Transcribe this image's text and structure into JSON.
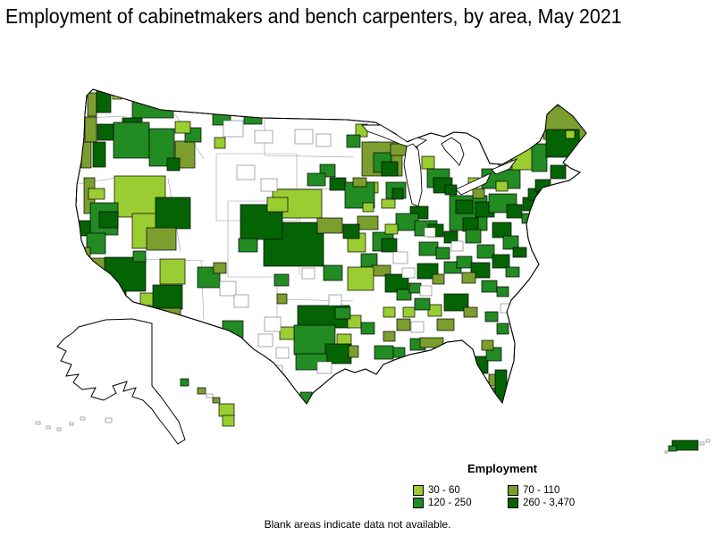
{
  "title": "Employment of cabinetmakers and bench carpenters, by area, May 2021",
  "footnote": "Blank areas indicate data not available.",
  "legend": {
    "title": "Employment",
    "classes": [
      {
        "label": "30 - 60",
        "color": "#9ACD32"
      },
      {
        "label": "70 - 110",
        "color": "#7B9E2E"
      },
      {
        "label": "120 - 250",
        "color": "#228B22"
      },
      {
        "label": "260 - 3,470",
        "color": "#046404"
      }
    ]
  },
  "chart_data": {
    "type": "choropleth",
    "title": "Employment of cabinetmakers and bench carpenters, by area, May 2021",
    "measure": "Employment",
    "period": "May 2021",
    "bins": [
      {
        "range": "30 - 60",
        "color": "#9ACD32"
      },
      {
        "range": "70 - 110",
        "color": "#7B9E2E"
      },
      {
        "range": "120 - 250",
        "color": "#228B22"
      },
      {
        "range": "260 - 3,470",
        "color": "#046404"
      }
    ],
    "note": "Blank areas indicate data not available.",
    "legend_position": "bottom-right"
  },
  "map": {
    "regions": [
      [
        98,
        104,
        10,
        26,
        1
      ],
      [
        108,
        100,
        16,
        26,
        3
      ],
      [
        126,
        100,
        10,
        11,
        0
      ],
      [
        148,
        106,
        46,
        26,
        2
      ],
      [
        137,
        132,
        22,
        20,
        3
      ],
      [
        95,
        131,
        13,
        28,
        1
      ],
      [
        109,
        139,
        18,
        18,
        3
      ],
      [
        127,
        137,
        40,
        40,
        2
      ],
      [
        104,
        159,
        14,
        28,
        3
      ],
      [
        91,
        159,
        11,
        29,
        1
      ],
      [
        167,
        144,
        28,
        42,
        2
      ],
      [
        196,
        158,
        22,
        30,
        1
      ],
      [
        187,
        177,
        14,
        14,
        3
      ],
      [
        207,
        143,
        18,
        16,
        2
      ],
      [
        196,
        136,
        17,
        13,
        0
      ],
      [
        238,
        127,
        20,
        13,
        2
      ],
      [
        240,
        154,
        12,
        12,
        0
      ],
      [
        273,
        126,
        20,
        13,
        2
      ],
      [
        398,
        139,
        13,
        14,
        0
      ],
      [
        388,
        151,
        15,
        14,
        2
      ],
      [
        412,
        159,
        13,
        12,
        3
      ],
      [
        358,
        184,
        17,
        14,
        2
      ],
      [
        405,
        159,
        45,
        38,
        1
      ],
      [
        418,
        171,
        20,
        22,
        2
      ],
      [
        427,
        181,
        18,
        16,
        3
      ],
      [
        409,
        204,
        14,
        12,
        0
      ],
      [
        432,
        204,
        22,
        18,
        2
      ],
      [
        439,
        211,
        12,
        12,
        3
      ],
      [
        427,
        223,
        15,
        10,
        0
      ],
      [
        437,
        161,
        30,
        13,
        1
      ],
      [
        472,
        175,
        14,
        14,
        0
      ],
      [
        478,
        189,
        25,
        21,
        2
      ],
      [
        485,
        199,
        21,
        17,
        3
      ],
      [
        498,
        207,
        13,
        11,
        3
      ],
      [
        305,
        212,
        55,
        32,
        0
      ],
      [
        344,
        194,
        20,
        14,
        2
      ],
      [
        369,
        199,
        18,
        14,
        3
      ],
      [
        386,
        204,
        33,
        29,
        2
      ],
      [
        395,
        199,
        15,
        10,
        1
      ],
      [
        406,
        227,
        12,
        10,
        0
      ],
      [
        400,
        242,
        23,
        15,
        1
      ],
      [
        295,
        249,
        67,
        49,
        3
      ],
      [
        355,
        244,
        28,
        17,
        1
      ],
      [
        389,
        261,
        20,
        21,
        0
      ],
      [
        384,
        251,
        18,
        16,
        3
      ],
      [
        417,
        260,
        23,
        21,
        2
      ],
      [
        427,
        267,
        17,
        15,
        3
      ],
      [
        404,
        284,
        18,
        15,
        2
      ],
      [
        416,
        297,
        21,
        12,
        1
      ],
      [
        362,
        297,
        21,
        17,
        2
      ],
      [
        389,
        299,
        29,
        26,
        0
      ],
      [
        431,
        307,
        26,
        20,
        3
      ],
      [
        444,
        324,
        16,
        12,
        2
      ],
      [
        458,
        317,
        13,
        11,
        2
      ],
      [
        307,
        307,
        16,
        13,
        2
      ],
      [
        128,
        197,
        57,
        46,
        0
      ],
      [
        148,
        239,
        42,
        39,
        0
      ],
      [
        94,
        199,
        12,
        40,
        1
      ],
      [
        99,
        211,
        18,
        12,
        0
      ],
      [
        101,
        227,
        31,
        36,
        2
      ],
      [
        89,
        247,
        12,
        17,
        3
      ],
      [
        111,
        237,
        21,
        18,
        3
      ],
      [
        97,
        261,
        21,
        23,
        2
      ],
      [
        87,
        277,
        14,
        12,
        1
      ],
      [
        99,
        289,
        19,
        14,
        1
      ],
      [
        117,
        288,
        46,
        38,
        3
      ],
      [
        125,
        325,
        16,
        13,
        3
      ],
      [
        157,
        328,
        16,
        14,
        0
      ],
      [
        174,
        221,
        39,
        35,
        3
      ],
      [
        164,
        255,
        33,
        25,
        1
      ],
      [
        149,
        281,
        14,
        12,
        2
      ],
      [
        179,
        290,
        28,
        28,
        0
      ],
      [
        171,
        319,
        33,
        27,
        3
      ],
      [
        175,
        345,
        27,
        16,
        1
      ],
      [
        221,
        299,
        25,
        23,
        2
      ],
      [
        239,
        294,
        14,
        12,
        1
      ],
      [
        249,
        359,
        23,
        19,
        2
      ],
      [
        269,
        229,
        47,
        39,
        3
      ],
      [
        299,
        221,
        23,
        16,
        0
      ],
      [
        267,
        267,
        21,
        15,
        2
      ],
      [
        333,
        342,
        58,
        25,
        3
      ],
      [
        313,
        366,
        17,
        14,
        0
      ],
      [
        329,
        364,
        46,
        33,
        2
      ],
      [
        377,
        374,
        16,
        15,
        0
      ],
      [
        364,
        385,
        29,
        22,
        3
      ],
      [
        390,
        387,
        11,
        13,
        1
      ],
      [
        389,
        353,
        15,
        14,
        0
      ],
      [
        375,
        344,
        17,
        13,
        2
      ],
      [
        331,
        396,
        35,
        18,
        2
      ],
      [
        336,
        439,
        13,
        13,
        2
      ],
      [
        310,
        329,
        11,
        11,
        1
      ],
      [
        459,
        231,
        20,
        14,
        3
      ],
      [
        443,
        239,
        25,
        19,
        2
      ],
      [
        431,
        251,
        14,
        11,
        0
      ],
      [
        464,
        247,
        25,
        17,
        2
      ],
      [
        479,
        251,
        17,
        14,
        3
      ],
      [
        503,
        219,
        42,
        39,
        2
      ],
      [
        510,
        224,
        19,
        15,
        3
      ],
      [
        518,
        244,
        17,
        15,
        3
      ],
      [
        497,
        259,
        15,
        13,
        3
      ],
      [
        529,
        211,
        13,
        11,
        1
      ],
      [
        469,
        271,
        21,
        15,
        2
      ],
      [
        488,
        277,
        15,
        13,
        2
      ],
      [
        521,
        257,
        17,
        15,
        2
      ],
      [
        551,
        249,
        21,
        17,
        3
      ],
      [
        563,
        264,
        17,
        15,
        2
      ],
      [
        574,
        277,
        15,
        11,
        3
      ],
      [
        534,
        274,
        19,
        15,
        2
      ],
      [
        467,
        295,
        23,
        17,
        3
      ],
      [
        497,
        293,
        19,
        13,
        2
      ],
      [
        484,
        307,
        13,
        11,
        1
      ],
      [
        511,
        287,
        17,
        13,
        2
      ],
      [
        527,
        294,
        21,
        17,
        3
      ],
      [
        551,
        285,
        19,
        15,
        3
      ],
      [
        566,
        299,
        15,
        11,
        2
      ],
      [
        517,
        305,
        15,
        12,
        1
      ],
      [
        539,
        314,
        17,
        13,
        2
      ],
      [
        556,
        321,
        13,
        11,
        2
      ],
      [
        497,
        329,
        27,
        19,
        3
      ],
      [
        479,
        341,
        15,
        13,
        0
      ],
      [
        519,
        344,
        15,
        11,
        1
      ],
      [
        543,
        349,
        14,
        11,
        2
      ],
      [
        489,
        357,
        19,
        13,
        1
      ],
      [
        464,
        334,
        17,
        13,
        2
      ],
      [
        451,
        344,
        13,
        11,
        0
      ],
      [
        444,
        357,
        15,
        13,
        1
      ],
      [
        429,
        344,
        13,
        11,
        0
      ],
      [
        459,
        379,
        17,
        13,
        2
      ],
      [
        438,
        389,
        15,
        11,
        2
      ],
      [
        419,
        387,
        21,
        15,
        2
      ],
      [
        404,
        361,
        15,
        13,
        2
      ],
      [
        429,
        371,
        13,
        11,
        1
      ],
      [
        470,
        378,
        26,
        11,
        1
      ],
      [
        556,
        362,
        13,
        12,
        2
      ],
      [
        529,
        399,
        17,
        19,
        3
      ],
      [
        544,
        389,
        17,
        15,
        2
      ],
      [
        539,
        381,
        13,
        11,
        1
      ],
      [
        547,
        419,
        15,
        13,
        1
      ],
      [
        554,
        414,
        13,
        37,
        3
      ],
      [
        543,
        434,
        11,
        11,
        2
      ],
      [
        539,
        189,
        43,
        22,
        2
      ],
      [
        555,
        203,
        13,
        11,
        0
      ],
      [
        524,
        199,
        12,
        10,
        0
      ],
      [
        558,
        179,
        15,
        11,
        1
      ],
      [
        532,
        226,
        21,
        17,
        3
      ],
      [
        547,
        217,
        31,
        21,
        2
      ],
      [
        567,
        229,
        17,
        15,
        3
      ],
      [
        585,
        221,
        13,
        15,
        3
      ],
      [
        591,
        211,
        15,
        13,
        3
      ],
      [
        601,
        212,
        15,
        5,
        3
      ],
      [
        599,
        201,
        17,
        13,
        3
      ],
      [
        616,
        185,
        17,
        15,
        3
      ],
      [
        573,
        161,
        23,
        29,
        0
      ],
      [
        595,
        161,
        17,
        31,
        2
      ],
      [
        608,
        119,
        48,
        37,
        1
      ],
      [
        611,
        145,
        37,
        31,
        3
      ],
      [
        633,
        146,
        10,
        9,
        0
      ],
      [
        584,
        239,
        11,
        11,
        2
      ],
      [
        250,
        135,
        22,
        18,
        4
      ],
      [
        285,
        146,
        20,
        14,
        4
      ],
      [
        265,
        185,
        20,
        16,
        4
      ],
      [
        292,
        200,
        18,
        14,
        4
      ],
      [
        330,
        145,
        20,
        16,
        4
      ],
      [
        354,
        150,
        16,
        14,
        4
      ],
      [
        296,
        355,
        18,
        16,
        4
      ],
      [
        289,
        374,
        16,
        14,
        4
      ],
      [
        309,
        389,
        14,
        12,
        4
      ],
      [
        300,
        409,
        16,
        14,
        4
      ],
      [
        246,
        315,
        18,
        16,
        4
      ],
      [
        262,
        330,
        16,
        14,
        4
      ],
      [
        225,
        370,
        18,
        14,
        4
      ],
      [
        338,
        300,
        14,
        12,
        4
      ],
      [
        368,
        330,
        14,
        12,
        4
      ],
      [
        440,
        282,
        16,
        13,
        4
      ],
      [
        450,
        300,
        14,
        11,
        4
      ],
      [
        470,
        320,
        13,
        11,
        4
      ],
      [
        505,
        270,
        13,
        11,
        4
      ],
      [
        460,
        360,
        14,
        12,
        4
      ],
      [
        480,
        395,
        14,
        11,
        4
      ],
      [
        430,
        420,
        14,
        12,
        4
      ],
      [
        355,
        405,
        16,
        13,
        4
      ],
      [
        560,
        340,
        12,
        10,
        4
      ],
      [
        475,
        255,
        12,
        10,
        4
      ]
    ],
    "islands": [
      [
        202,
        424,
        9,
        8,
        2
      ],
      [
        221,
        434,
        9,
        7,
        1
      ],
      [
        231,
        441,
        7,
        4,
        4
      ],
      [
        238,
        445,
        8,
        6,
        1
      ],
      [
        245,
        452,
        17,
        14,
        0
      ],
      [
        249,
        465,
        13,
        12,
        0
      ],
      [
        40,
        472,
        5,
        3,
        4
      ],
      [
        52,
        477,
        4,
        3,
        4
      ],
      [
        64,
        479,
        4,
        3,
        4
      ],
      [
        78,
        473,
        4,
        3,
        4
      ],
      [
        90,
        467,
        5,
        3,
        4
      ],
      [
        118,
        468,
        7,
        5,
        4
      ],
      [
        752,
        493,
        29,
        11,
        3
      ],
      [
        748,
        499,
        9,
        6,
        2
      ],
      [
        744,
        505,
        3,
        2,
        4
      ],
      [
        783,
        495,
        5,
        3,
        4
      ],
      [
        790,
        492,
        4,
        3,
        4
      ]
    ]
  }
}
